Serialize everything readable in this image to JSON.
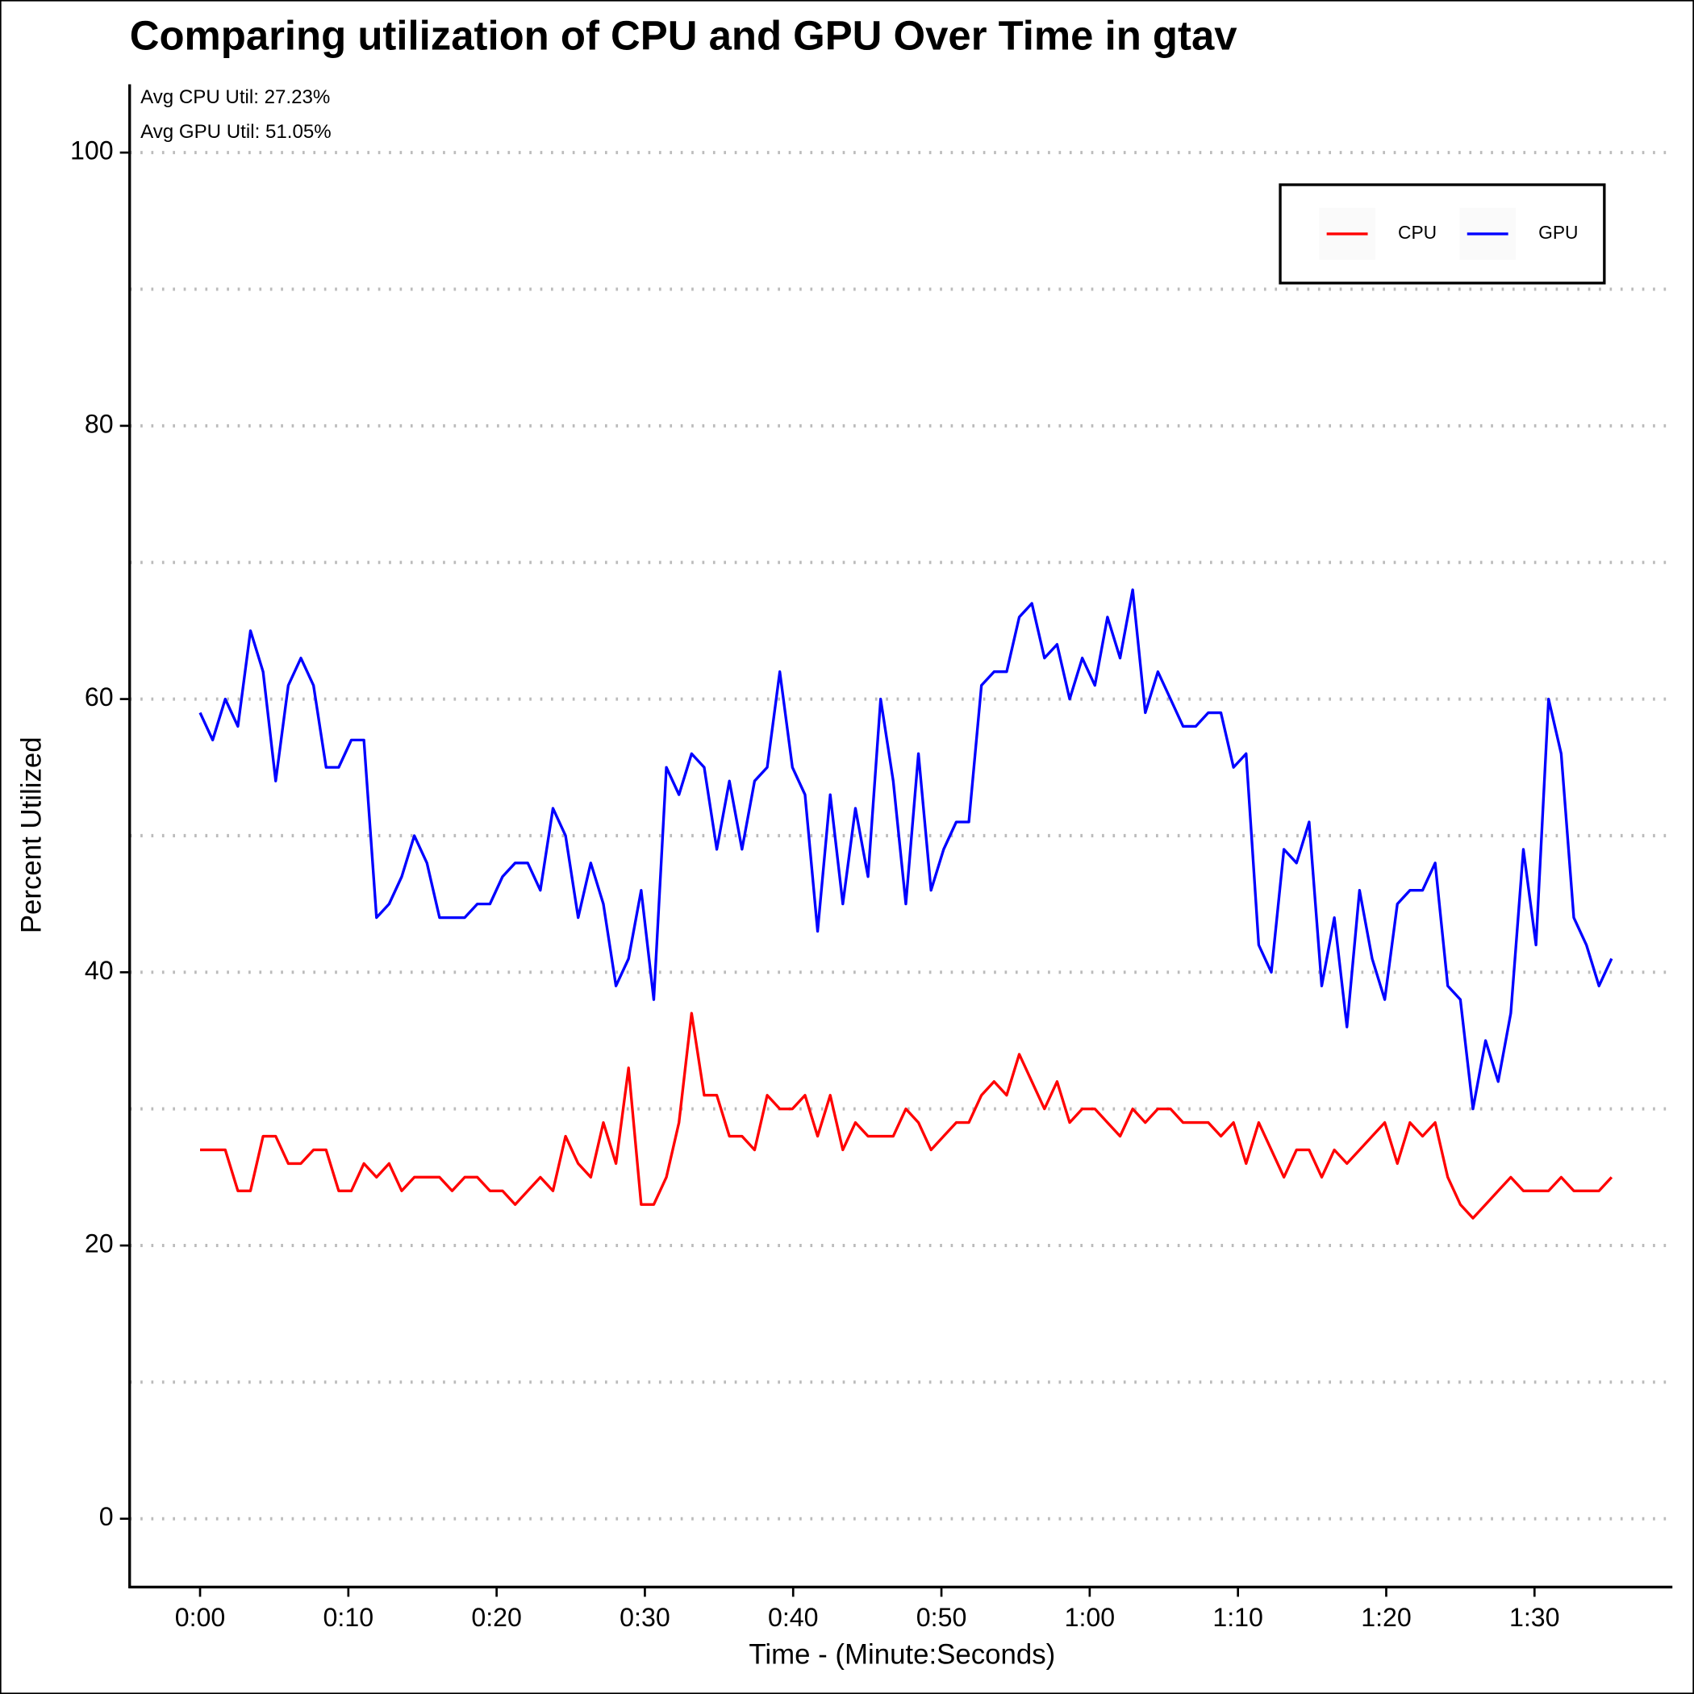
{
  "chart_data": {
    "type": "line",
    "title": "Comparing utilization of CPU and GPU Over Time in gtav",
    "x_label": "Time - (Minute:Seconds)",
    "y_label": "Percent Utilized",
    "annotations": [
      "Avg CPU Util: 27.23%",
      "Avg GPU Util: 51.05%"
    ],
    "legend_position": "top-right",
    "grid": true,
    "xlim": [
      -4.75,
      99.3
    ],
    "ylim": [
      -5,
      105
    ],
    "xticks": [
      {
        "value": 0,
        "label": "0:00"
      },
      {
        "value": 10,
        "label": "0:10"
      },
      {
        "value": 20,
        "label": "0:20"
      },
      {
        "value": 30,
        "label": "0:30"
      },
      {
        "value": 40,
        "label": "0:40"
      },
      {
        "value": 50,
        "label": "0:50"
      },
      {
        "value": 60,
        "label": "1:00"
      },
      {
        "value": 70,
        "label": "1:10"
      },
      {
        "value": 80,
        "label": "1:20"
      },
      {
        "value": 90,
        "label": "1:30"
      }
    ],
    "yticks": [
      0,
      20,
      40,
      60,
      80,
      100
    ],
    "y_minor_ticks": [
      10,
      30,
      50,
      70,
      90
    ],
    "x": [
      0,
      0.85,
      1.7,
      2.55,
      3.4,
      4.25,
      5.1,
      5.95,
      6.8,
      7.65,
      8.5,
      9.35,
      10.2,
      11.05,
      11.9,
      12.75,
      13.6,
      14.45,
      15.3,
      16.15,
      17,
      17.85,
      18.7,
      19.55,
      20.4,
      21.25,
      22.1,
      22.95,
      23.8,
      24.65,
      25.5,
      26.35,
      27.2,
      28.05,
      28.9,
      29.75,
      30.6,
      31.45,
      32.3,
      33.15,
      34,
      34.85,
      35.7,
      36.55,
      37.4,
      38.25,
      39.1,
      39.95,
      40.8,
      41.65,
      42.5,
      43.35,
      44.2,
      45.05,
      45.9,
      46.75,
      47.6,
      48.45,
      49.3,
      50.15,
      51,
      51.85,
      52.7,
      53.55,
      54.4,
      55.25,
      56.1,
      56.95,
      57.8,
      58.65,
      59.5,
      60.35,
      61.2,
      62.05,
      62.9,
      63.75,
      64.6,
      65.45,
      66.3,
      67.15,
      68,
      68.85,
      69.7,
      70.55,
      71.4,
      72.25,
      73.1,
      73.95,
      74.8,
      75.65,
      76.5,
      77.35,
      78.2,
      79.05,
      79.9,
      80.75,
      81.6,
      82.45,
      83.3,
      84.15,
      85,
      85.85,
      86.7,
      87.55,
      88.4,
      89.25,
      90.1,
      90.95,
      91.8,
      92.65,
      93.5,
      94.35,
      95.2
    ],
    "series": [
      {
        "name": "CPU",
        "color": "#ff0000",
        "values": [
          27,
          27,
          27,
          24,
          24,
          28,
          28,
          26,
          26,
          27,
          27,
          24,
          24,
          26,
          25,
          26,
          24,
          25,
          25,
          25,
          24,
          25,
          25,
          24,
          24,
          23,
          24,
          25,
          24,
          28,
          26,
          25,
          29,
          26,
          33,
          23,
          23,
          25,
          29,
          37,
          31,
          31,
          28,
          28,
          27,
          31,
          30,
          30,
          31,
          28,
          31,
          27,
          29,
          28,
          28,
          28,
          30,
          29,
          27,
          28,
          29,
          29,
          31,
          32,
          31,
          34,
          32,
          30,
          32,
          29,
          30,
          30,
          29,
          28,
          30,
          29,
          30,
          30,
          29,
          29,
          29,
          28,
          29,
          26,
          29,
          27,
          25,
          27,
          27,
          25,
          27,
          26,
          27,
          28,
          29,
          26,
          29,
          28,
          29,
          25,
          23,
          22,
          23,
          24,
          25,
          24,
          24,
          24,
          25,
          24,
          24,
          24,
          25
        ]
      },
      {
        "name": "GPU",
        "color": "#0000ff",
        "values": [
          59,
          57,
          60,
          58,
          65,
          62,
          54,
          61,
          63,
          61,
          55,
          55,
          57,
          57,
          44,
          45,
          47,
          50,
          48,
          44,
          44,
          44,
          45,
          45,
          47,
          48,
          48,
          46,
          52,
          50,
          44,
          48,
          45,
          39,
          41,
          46,
          38,
          55,
          53,
          56,
          55,
          49,
          54,
          49,
          54,
          55,
          62,
          55,
          53,
          43,
          53,
          45,
          52,
          47,
          60,
          54,
          45,
          56,
          46,
          49,
          51,
          51,
          61,
          62,
          62,
          66,
          67,
          63,
          64,
          60,
          63,
          61,
          66,
          63,
          68,
          59,
          62,
          60,
          58,
          58,
          59,
          59,
          55,
          56,
          42,
          40,
          49,
          48,
          51,
          39,
          44,
          36,
          46,
          41,
          38,
          45,
          46,
          46,
          48,
          39,
          38,
          30,
          35,
          32,
          37,
          49,
          42,
          60,
          56,
          44,
          42,
          39,
          41
        ]
      }
    ]
  }
}
